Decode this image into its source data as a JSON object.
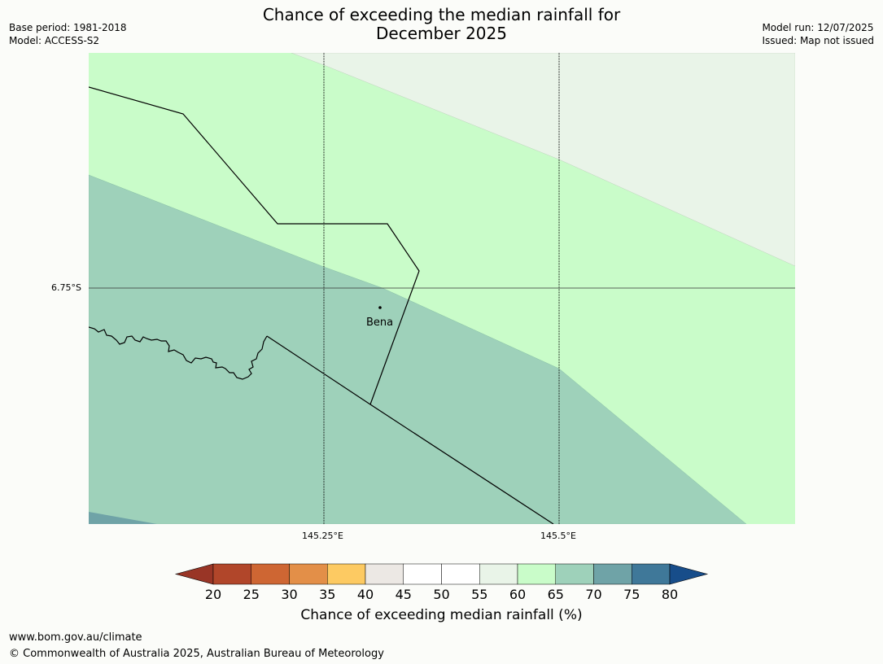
{
  "header": {
    "title_line1": "Chance of exceeding the median rainfall for",
    "title_line2": "December 2025",
    "base_period": "Base period: 1981-2018",
    "model": "Model: ACCESS-S2",
    "model_run": "Model run: 12/07/2025",
    "issued": "Issued: Map not issued"
  },
  "map": {
    "lat_labels": [
      "6.75°S"
    ],
    "lon_labels": [
      "145.25°E",
      "145.5°E"
    ],
    "places": [
      {
        "name": "Bena"
      }
    ],
    "colors": {
      "c40_45": "#ece8e4",
      "c55_60": "#e9f4e8",
      "c60_65": "#c9fcc9",
      "c65_70": "#9ed1ba",
      "c70_75": "#6fa3a7",
      "border": "#000000"
    }
  },
  "colorbar": {
    "ticks": [
      "20",
      "25",
      "30",
      "35",
      "40",
      "45",
      "50",
      "55",
      "60",
      "65",
      "70",
      "75",
      "80"
    ],
    "colors": [
      "#b1462a",
      "#ce6633",
      "#e38f48",
      "#fdca62",
      "#ece8e4",
      "#ffffff",
      "#ffffff",
      "#e9f4e8",
      "#c9fcc9",
      "#9ed1ba",
      "#6fa3a7",
      "#3f7899"
    ],
    "under_color": "#993526",
    "over_color": "#174d8a",
    "label": "Chance of exceeding median rainfall (%)"
  },
  "footer": {
    "url": "www.bom.gov.au/climate",
    "copyright": "© Commonwealth of Australia 2025, Australian Bureau of Meteorology"
  }
}
